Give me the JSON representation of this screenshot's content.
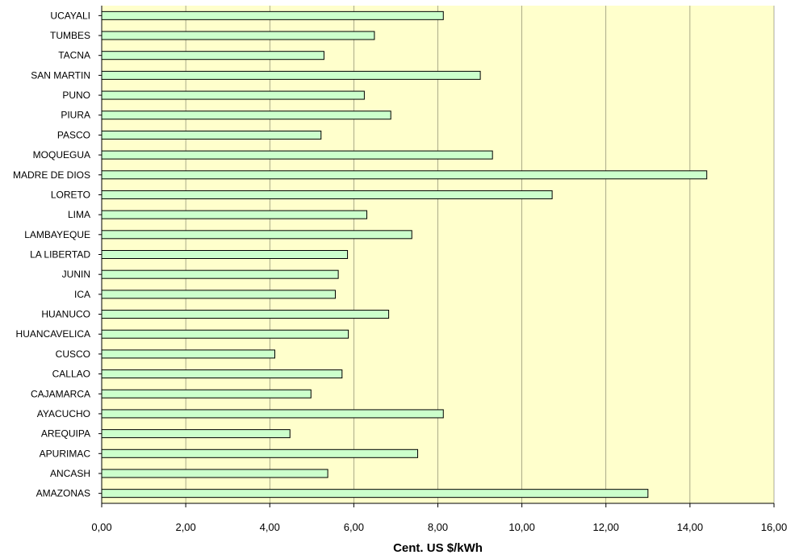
{
  "chart_data": {
    "type": "bar",
    "orientation": "horizontal",
    "categories": [
      "AMAZONAS",
      "ANCASH",
      "APURIMAC",
      "AREQUIPA",
      "AYACUCHO",
      "CAJAMARCA",
      "CALLAO",
      "CUSCO",
      "HUANCAVELICA",
      "HUANUCO",
      "ICA",
      "JUNIN",
      "LA LIBERTAD",
      "LAMBAYEQUE",
      "LIMA",
      "LORETO",
      "MADRE DE DIOS",
      "MOQUEGUA",
      "PASCO",
      "PIURA",
      "PUNO",
      "SAN MARTIN",
      "TACNA",
      "TUMBES",
      "UCAYALI"
    ],
    "values": [
      13.0,
      5.38,
      7.52,
      4.48,
      8.13,
      4.98,
      5.72,
      4.12,
      5.87,
      6.83,
      5.56,
      5.63,
      5.85,
      7.38,
      6.31,
      10.72,
      14.4,
      9.3,
      5.22,
      6.88,
      6.25,
      9.01,
      5.29,
      6.49,
      8.13
    ],
    "xlabel": "Cent. US $/kWh",
    "xlim": [
      0,
      16
    ],
    "xticks": [
      "0,00",
      "2,00",
      "4,00",
      "6,00",
      "8,00",
      "10,00",
      "12,00",
      "14,00",
      "16,00"
    ],
    "grid": "vertical",
    "colors": {
      "bar_fill": "#ccffcc",
      "bar_stroke": "#000000",
      "plot_bg": "#ffffcc",
      "grid": "#000000"
    }
  }
}
